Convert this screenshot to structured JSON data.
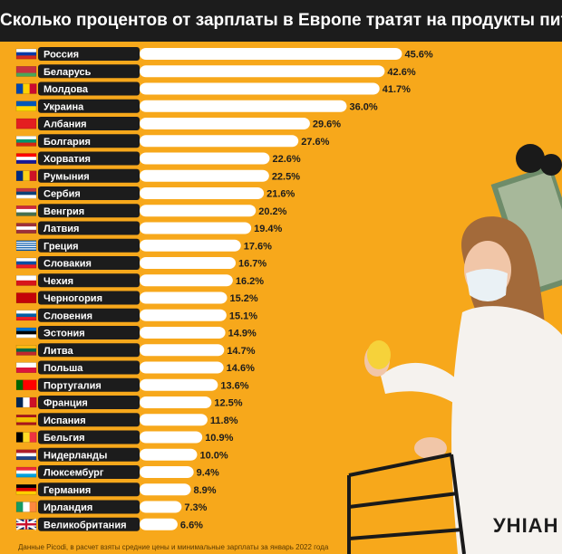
{
  "title": "Сколько процентов от зарплаты в Европе тратят на продукты питания",
  "source": "Данные Picodi, в расчет взяты средние цены и минимальные зарплаты за январь 2022 года",
  "logo_text": "УНІАН",
  "colors": {
    "background": "#f7a81b",
    "bar": "#ffffff",
    "label_bg": "#1c1c1c",
    "label_text": "#ffffff",
    "value_text": "#1c1c1c",
    "title_bg": "#1c1c1c"
  },
  "chart_data": {
    "type": "bar",
    "orientation": "horizontal",
    "title": "Сколько процентов от зарплаты в Европе тратят на продукты питания",
    "value_suffix": "%",
    "xlim": [
      0,
      46
    ],
    "categories": [
      "Россия",
      "Беларусь",
      "Молдова",
      "Украина",
      "Албания",
      "Болгария",
      "Хорватия",
      "Румыния",
      "Сербия",
      "Венгрия",
      "Латвия",
      "Греция",
      "Словакия",
      "Чехия",
      "Черногория",
      "Словения",
      "Эстония",
      "Литва",
      "Польша",
      "Португалия",
      "Франция",
      "Испания",
      "Бельгия",
      "Нидерланды",
      "Люксембург",
      "Германия",
      "Ирландия",
      "Великобритания"
    ],
    "values": [
      45.6,
      42.6,
      41.7,
      36.0,
      29.6,
      27.6,
      22.6,
      22.5,
      21.6,
      20.2,
      19.4,
      17.6,
      16.7,
      16.2,
      15.2,
      15.1,
      14.9,
      14.7,
      14.6,
      13.6,
      12.5,
      11.8,
      10.9,
      10.0,
      9.4,
      8.9,
      7.3,
      6.6
    ],
    "value_labels": [
      "45.6%",
      "42.6%",
      "41.7%",
      "36.0%",
      "29.6%",
      "27.6%",
      "22.6%",
      "22.5%",
      "21.6%",
      "20.2%",
      "19.4%",
      "17.6%",
      "16.7%",
      "16.2%",
      "15.2%",
      "15.1%",
      "14.9%",
      "14.7%",
      "14.6%",
      "13.6%",
      "12.5%",
      "11.8%",
      "10.9%",
      "10.0%",
      "9.4%",
      "8.9%",
      "7.3%",
      "6.6%"
    ],
    "flag_icons": [
      "flag-russia-icon",
      "flag-belarus-icon",
      "flag-moldova-icon",
      "flag-ukraine-icon",
      "flag-albania-icon",
      "flag-bulgaria-icon",
      "flag-croatia-icon",
      "flag-romania-icon",
      "flag-serbia-icon",
      "flag-hungary-icon",
      "flag-latvia-icon",
      "flag-greece-icon",
      "flag-slovakia-icon",
      "flag-czechia-icon",
      "flag-montenegro-icon",
      "flag-slovenia-icon",
      "flag-estonia-icon",
      "flag-lithuania-icon",
      "flag-poland-icon",
      "flag-portugal-icon",
      "flag-france-icon",
      "flag-spain-icon",
      "flag-belgium-icon",
      "flag-netherlands-icon",
      "flag-luxembourg-icon",
      "flag-germany-icon",
      "flag-ireland-icon",
      "flag-uk-icon"
    ],
    "flags": [
      {
        "dir": "h",
        "colors": [
          "#ffffff",
          "#0039a6",
          "#d52b1e"
        ]
      },
      {
        "dir": "h",
        "colors": [
          "#c8313e",
          "#c8313e",
          "#4aa657"
        ]
      },
      {
        "dir": "v",
        "colors": [
          "#0046ae",
          "#ffd200",
          "#cc092f"
        ]
      },
      {
        "dir": "h",
        "colors": [
          "#0057b7",
          "#ffd700"
        ]
      },
      {
        "dir": "h",
        "colors": [
          "#e41e20"
        ]
      },
      {
        "dir": "h",
        "colors": [
          "#ffffff",
          "#00966e",
          "#d62612"
        ]
      },
      {
        "dir": "h",
        "colors": [
          "#ff0000",
          "#ffffff",
          "#171796"
        ]
      },
      {
        "dir": "v",
        "colors": [
          "#002b7f",
          "#fcd116",
          "#ce1126"
        ]
      },
      {
        "dir": "h",
        "colors": [
          "#c6363c",
          "#0c4076",
          "#ffffff"
        ]
      },
      {
        "dir": "h",
        "colors": [
          "#ce2939",
          "#ffffff",
          "#477050"
        ]
      },
      {
        "dir": "h",
        "colors": [
          "#9e3039",
          "#ffffff",
          "#9e3039"
        ]
      },
      {
        "dir": "h",
        "colors": [
          "#0d5eaf",
          "#ffffff",
          "#0d5eaf",
          "#ffffff",
          "#0d5eaf",
          "#ffffff",
          "#0d5eaf",
          "#ffffff",
          "#0d5eaf"
        ]
      },
      {
        "dir": "h",
        "colors": [
          "#ffffff",
          "#0b4ea2",
          "#ee1c25"
        ]
      },
      {
        "dir": "h",
        "colors": [
          "#ffffff",
          "#d7141a"
        ]
      },
      {
        "dir": "h",
        "colors": [
          "#c40308"
        ]
      },
      {
        "dir": "h",
        "colors": [
          "#ffffff",
          "#005da4",
          "#ed1c24"
        ]
      },
      {
        "dir": "h",
        "colors": [
          "#0072ce",
          "#000000",
          "#ffffff"
        ]
      },
      {
        "dir": "h",
        "colors": [
          "#fdb913",
          "#006a44",
          "#c1272d"
        ]
      },
      {
        "dir": "h",
        "colors": [
          "#ffffff",
          "#dc143c"
        ]
      },
      {
        "dir": "v",
        "colors": [
          "#006600",
          "#ff0000",
          "#ff0000"
        ]
      },
      {
        "dir": "v",
        "colors": [
          "#002654",
          "#ffffff",
          "#ce1126"
        ]
      },
      {
        "dir": "h",
        "colors": [
          "#aa151b",
          "#f1bf00",
          "#f1bf00",
          "#aa151b"
        ]
      },
      {
        "dir": "v",
        "colors": [
          "#000000",
          "#fdda24",
          "#ef3340"
        ]
      },
      {
        "dir": "h",
        "colors": [
          "#ae1c28",
          "#ffffff",
          "#21468b"
        ]
      },
      {
        "dir": "h",
        "colors": [
          "#ed2939",
          "#ffffff",
          "#00a1de"
        ]
      },
      {
        "dir": "h",
        "colors": [
          "#000000",
          "#dd0000",
          "#ffce00"
        ]
      },
      {
        "dir": "v",
        "colors": [
          "#169b62",
          "#ffffff",
          "#ff883e"
        ]
      },
      {
        "dir": "uk",
        "colors": [
          "#012169",
          "#ffffff",
          "#c8102e"
        ]
      }
    ]
  }
}
